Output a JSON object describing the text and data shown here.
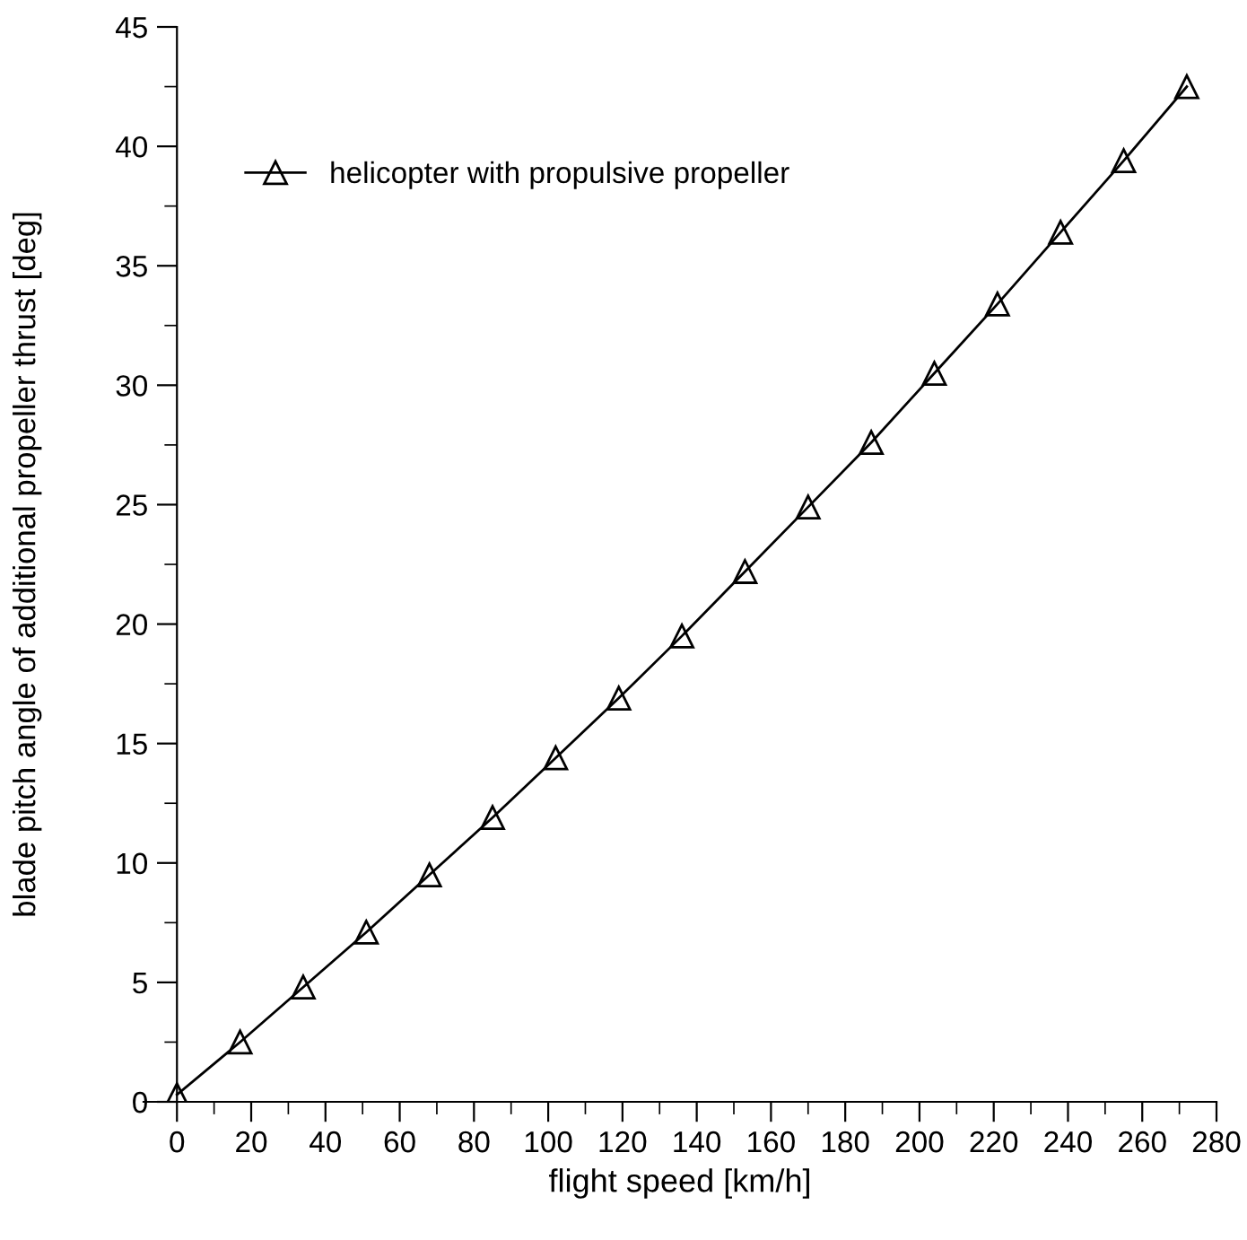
{
  "chart_data": {
    "type": "line",
    "xlabel": "flight speed [km/h]",
    "ylabel": "blade pitch angle of additional propeller thrust [deg]",
    "x": [
      0,
      17,
      34,
      51,
      68,
      85,
      102,
      119,
      136,
      153,
      170,
      187,
      204,
      221,
      238,
      255,
      272
    ],
    "series": [
      {
        "name": "helicopter with propulsive propeller",
        "color": "#000000",
        "values": [
          0.3,
          2.5,
          4.8,
          7.1,
          9.5,
          11.9,
          14.4,
          16.9,
          19.5,
          22.2,
          24.9,
          27.6,
          30.5,
          33.4,
          36.4,
          39.4,
          42.5
        ]
      }
    ],
    "marker": "triangle",
    "line_style": "solid",
    "legend": "top left",
    "grid": false,
    "xlim": [
      -9,
      280
    ],
    "ylim": [
      0,
      45
    ],
    "xticks": [
      0,
      {
        "value": 10,
        "label": null
      },
      20,
      {
        "value": 30,
        "label": null
      },
      40,
      {
        "value": 50,
        "label": null
      },
      60,
      {
        "value": 70,
        "label": null
      },
      80,
      {
        "value": 90,
        "label": null
      },
      100,
      {
        "value": 110,
        "label": null
      },
      120,
      {
        "value": 130,
        "label": null
      },
      140,
      {
        "value": 150,
        "label": null
      },
      160,
      {
        "value": 170,
        "label": null
      },
      180,
      {
        "value": 190,
        "label": null
      },
      200,
      {
        "value": 210,
        "label": null
      },
      220,
      {
        "value": 230,
        "label": null
      },
      240,
      {
        "value": 250,
        "label": null
      },
      260,
      {
        "value": 270,
        "label": null
      },
      280
    ],
    "yticks": [
      0,
      {
        "value": 2.5,
        "label": null
      },
      5,
      {
        "value": 7.5,
        "label": null
      },
      10,
      {
        "value": 12.5,
        "label": null
      },
      15,
      {
        "value": 17.5,
        "label": null
      },
      20,
      {
        "value": 22.5,
        "label": null
      },
      25,
      {
        "value": 27.5,
        "label": null
      },
      30,
      {
        "value": 32.5,
        "label": null
      },
      35,
      {
        "value": 37.5,
        "label": null
      },
      40,
      {
        "value": 42.5,
        "label": null
      },
      45
    ]
  }
}
